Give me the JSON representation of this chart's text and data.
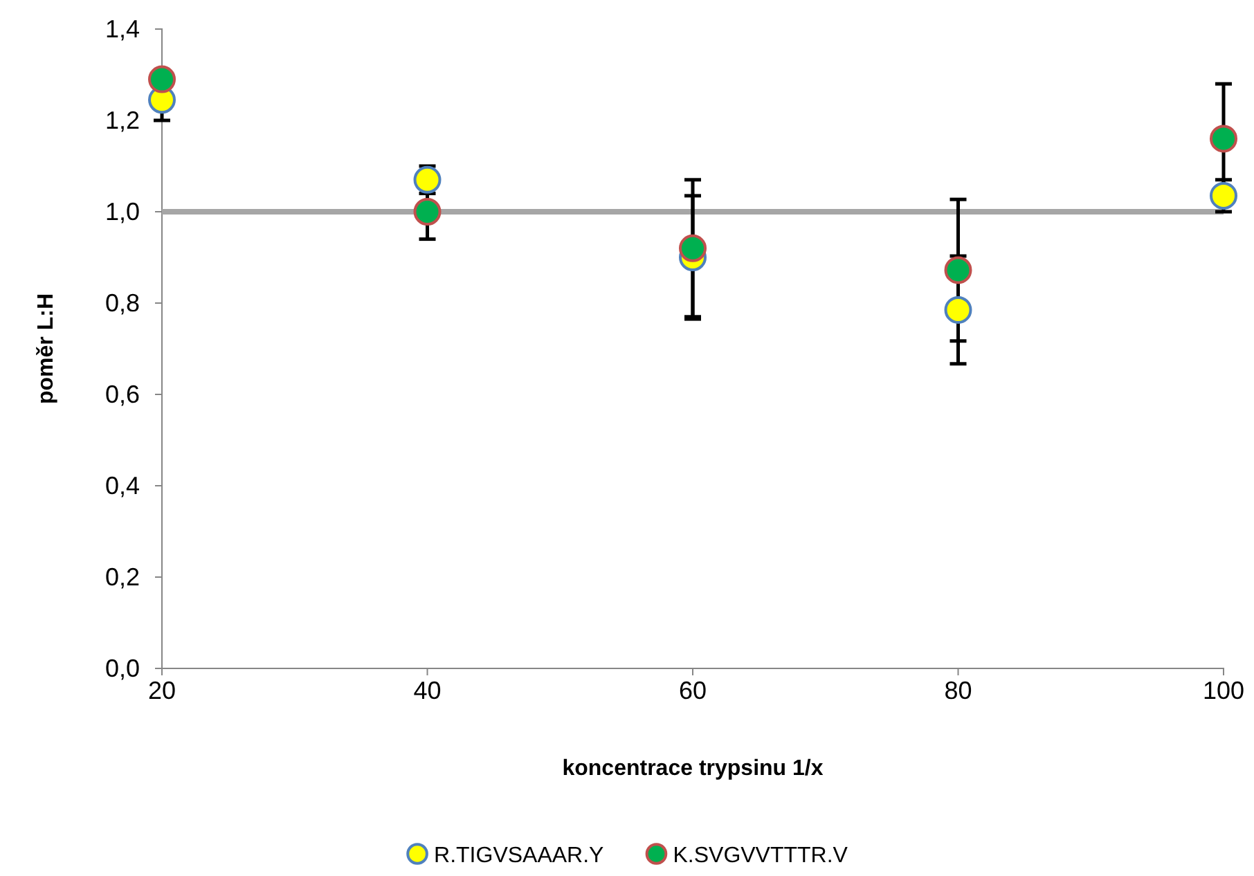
{
  "chart_data": {
    "type": "scatter",
    "xlabel": "koncentrace trypsinu 1/x",
    "ylabel": "poměr L:H",
    "x": [
      20,
      40,
      60,
      80,
      100
    ],
    "series": [
      {
        "name": "R.TIGVSAAAR.Y",
        "color": "#ffff00",
        "values": [
          1.245,
          1.07,
          0.9,
          0.785,
          1.035
        ],
        "errors": [
          0.045,
          0.03,
          0.135,
          0.118,
          0.035
        ]
      },
      {
        "name": "K.SVGVVTTTR.V",
        "color": "#00b050",
        "values": [
          1.29,
          1.0,
          0.92,
          0.872,
          1.16
        ],
        "errors": [
          null,
          0.06,
          0.15,
          0.155,
          0.12
        ]
      }
    ],
    "xlim": [
      20,
      100
    ],
    "xticks": [
      20,
      40,
      60,
      80,
      100
    ],
    "ylim": [
      0,
      1.4
    ],
    "yticks": [
      {
        "value": 0,
        "label": "0,0"
      },
      {
        "value": 0.2,
        "label": "0,2"
      },
      {
        "value": 0.4,
        "label": "0,4"
      },
      {
        "value": 0.6,
        "label": "0,6"
      },
      {
        "value": 0.8,
        "label": "0,8"
      },
      {
        "value": 1,
        "label": "1,0"
      },
      {
        "value": 1.2,
        "label": "1,2"
      },
      {
        "value": 1.4,
        "label": "1,4"
      }
    ],
    "ref_lines": [
      {
        "axis": "y",
        "value": 1,
        "color": "#a6a6a6"
      }
    ],
    "legend": "bottom",
    "marker": "circle",
    "grid": false
  }
}
